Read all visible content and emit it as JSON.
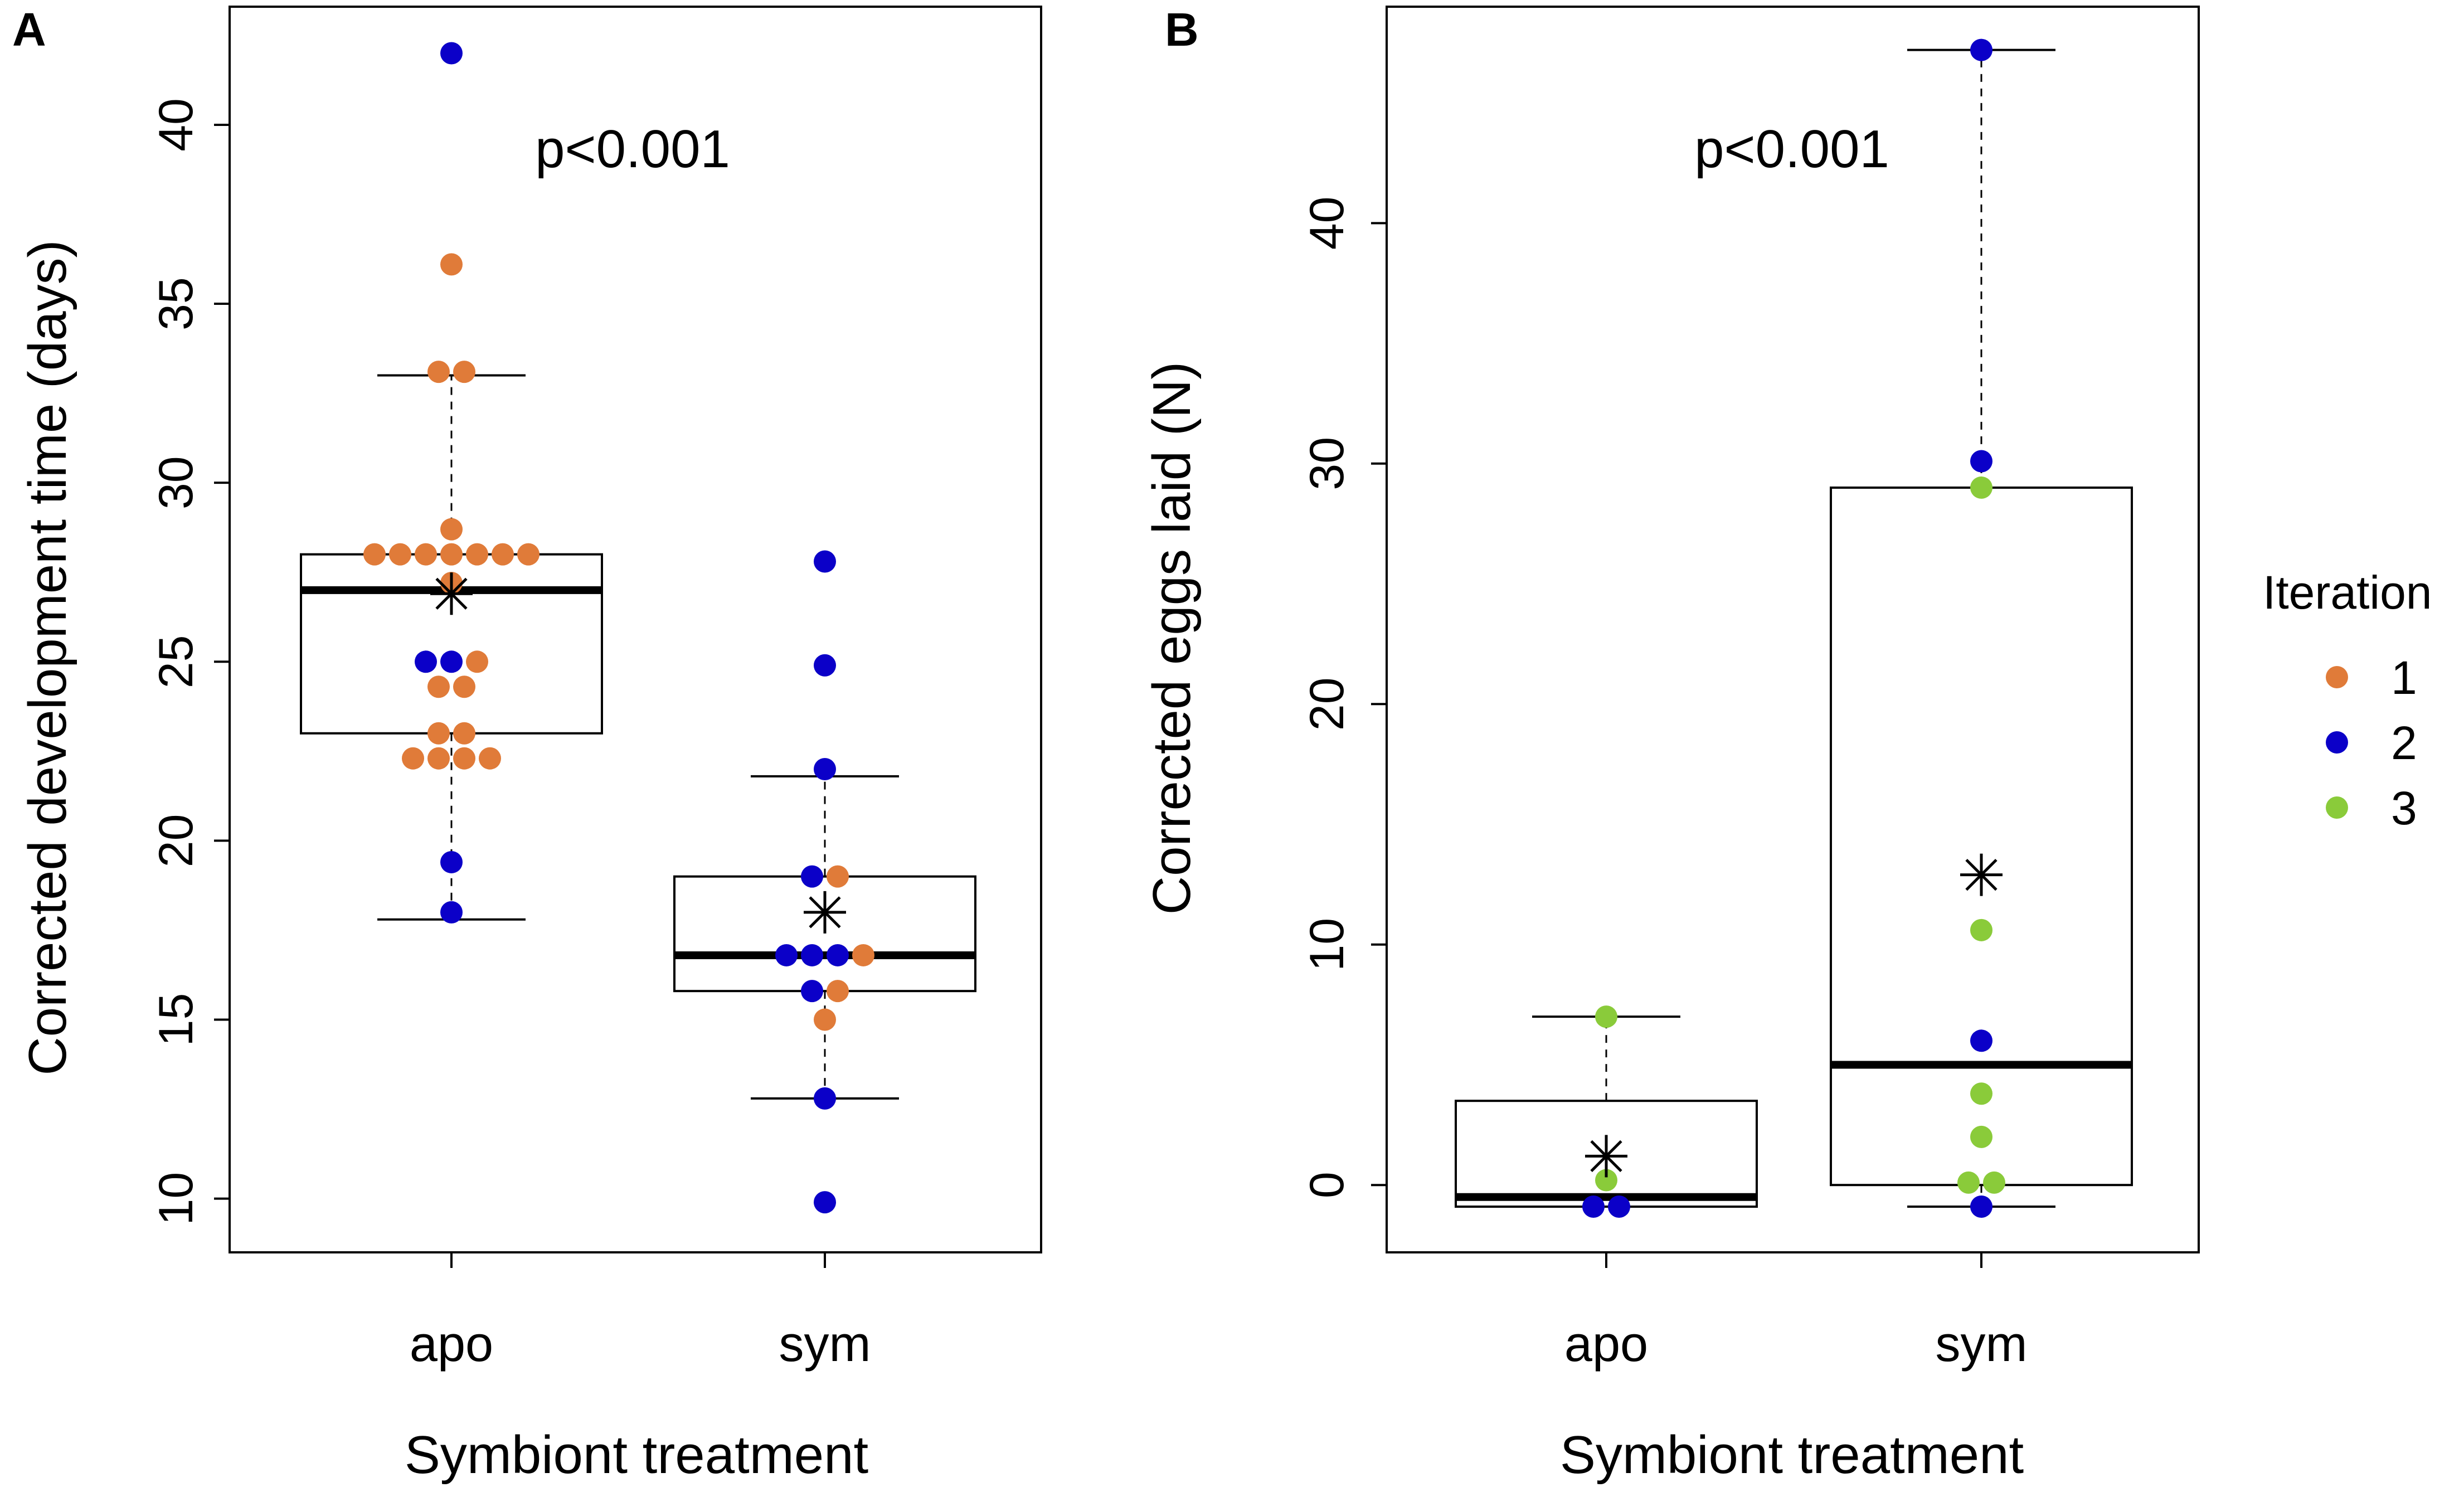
{
  "chart_data": [
    {
      "type": "boxplot",
      "panel": "A",
      "annotation": "p<0.001",
      "xlabel": "Symbiont treatment",
      "ylabel": "Corrected development time (days)",
      "ylim": [
        8.5,
        43.3
      ],
      "yticks": [
        10,
        15,
        20,
        25,
        30,
        35,
        40
      ],
      "categories": [
        "apo",
        "sym"
      ],
      "boxes": [
        {
          "category": "apo",
          "whisker_low": 17.8,
          "q1": 23.0,
          "median": 27.0,
          "q3": 28.0,
          "whisker_high": 33.0,
          "mean": 26.9
        },
        {
          "category": "sym",
          "whisker_low": 12.8,
          "q1": 15.8,
          "median": 16.8,
          "q3": 19.0,
          "whisker_high": 21.8,
          "mean": 18.0
        }
      ],
      "points": [
        {
          "category": "apo",
          "y": 42.0,
          "iteration": "2",
          "offset": 0
        },
        {
          "category": "apo",
          "y": 36.1,
          "iteration": "1",
          "offset": 0
        },
        {
          "category": "apo",
          "y": 33.1,
          "iteration": "1",
          "offset": -0.5
        },
        {
          "category": "apo",
          "y": 33.1,
          "iteration": "1",
          "offset": 0.5
        },
        {
          "category": "apo",
          "y": 28.7,
          "iteration": "1",
          "offset": 0
        },
        {
          "category": "apo",
          "y": 28.0,
          "iteration": "1",
          "offset": -3
        },
        {
          "category": "apo",
          "y": 28.0,
          "iteration": "1",
          "offset": -2
        },
        {
          "category": "apo",
          "y": 28.0,
          "iteration": "1",
          "offset": -1
        },
        {
          "category": "apo",
          "y": 28.0,
          "iteration": "1",
          "offset": 0
        },
        {
          "category": "apo",
          "y": 28.0,
          "iteration": "1",
          "offset": 1
        },
        {
          "category": "apo",
          "y": 28.0,
          "iteration": "1",
          "offset": 2
        },
        {
          "category": "apo",
          "y": 28.0,
          "iteration": "1",
          "offset": 3
        },
        {
          "category": "apo",
          "y": 27.2,
          "iteration": "1",
          "offset": 0
        },
        {
          "category": "apo",
          "y": 25.0,
          "iteration": "2",
          "offset": -1
        },
        {
          "category": "apo",
          "y": 25.0,
          "iteration": "2",
          "offset": 0
        },
        {
          "category": "apo",
          "y": 25.0,
          "iteration": "1",
          "offset": 1
        },
        {
          "category": "apo",
          "y": 24.3,
          "iteration": "1",
          "offset": -0.5
        },
        {
          "category": "apo",
          "y": 24.3,
          "iteration": "1",
          "offset": 0.5
        },
        {
          "category": "apo",
          "y": 23.0,
          "iteration": "1",
          "offset": -0.5
        },
        {
          "category": "apo",
          "y": 23.0,
          "iteration": "1",
          "offset": 0.5
        },
        {
          "category": "apo",
          "y": 22.3,
          "iteration": "1",
          "offset": -1.5
        },
        {
          "category": "apo",
          "y": 22.3,
          "iteration": "1",
          "offset": -0.5
        },
        {
          "category": "apo",
          "y": 22.3,
          "iteration": "1",
          "offset": 0.5
        },
        {
          "category": "apo",
          "y": 22.3,
          "iteration": "1",
          "offset": 1.5
        },
        {
          "category": "apo",
          "y": 19.4,
          "iteration": "2",
          "offset": 0
        },
        {
          "category": "apo",
          "y": 18.0,
          "iteration": "2",
          "offset": 0
        },
        {
          "category": "sym",
          "y": 27.8,
          "iteration": "2",
          "offset": 0
        },
        {
          "category": "sym",
          "y": 24.9,
          "iteration": "2",
          "offset": 0
        },
        {
          "category": "sym",
          "y": 22.0,
          "iteration": "2",
          "offset": 0
        },
        {
          "category": "sym",
          "y": 19.0,
          "iteration": "2",
          "offset": -0.5
        },
        {
          "category": "sym",
          "y": 19.0,
          "iteration": "1",
          "offset": 0.5
        },
        {
          "category": "sym",
          "y": 16.8,
          "iteration": "2",
          "offset": -1.5
        },
        {
          "category": "sym",
          "y": 16.8,
          "iteration": "2",
          "offset": -0.5
        },
        {
          "category": "sym",
          "y": 16.8,
          "iteration": "2",
          "offset": 0.5
        },
        {
          "category": "sym",
          "y": 16.8,
          "iteration": "1",
          "offset": 1.5
        },
        {
          "category": "sym",
          "y": 15.8,
          "iteration": "2",
          "offset": -0.5
        },
        {
          "category": "sym",
          "y": 15.8,
          "iteration": "1",
          "offset": 0.5
        },
        {
          "category": "sym",
          "y": 15.0,
          "iteration": "1",
          "offset": 0
        },
        {
          "category": "sym",
          "y": 12.8,
          "iteration": "2",
          "offset": 0
        },
        {
          "category": "sym",
          "y": 9.9,
          "iteration": "2",
          "offset": 0
        }
      ]
    },
    {
      "type": "boxplot",
      "panel": "B",
      "annotation": "p<0.001",
      "xlabel": "Symbiont treatment",
      "ylabel": "Corrected eggs laid (N)",
      "ylim": [
        -2.8,
        49.0
      ],
      "yticks": [
        0,
        10,
        20,
        30,
        40
      ],
      "categories": [
        "apo",
        "sym"
      ],
      "boxes": [
        {
          "category": "apo",
          "whisker_low": -0.9,
          "q1": -0.9,
          "median": -0.5,
          "q3": 3.5,
          "whisker_high": 7.0,
          "mean": 1.2
        },
        {
          "category": "sym",
          "whisker_low": -0.9,
          "q1": 0.0,
          "median": 5.0,
          "q3": 29.0,
          "whisker_high": 47.2,
          "mean": 12.9
        }
      ],
      "points": [
        {
          "category": "apo",
          "y": 7.0,
          "iteration": "3",
          "offset": 0
        },
        {
          "category": "apo",
          "y": 0.2,
          "iteration": "3",
          "offset": 0
        },
        {
          "category": "apo",
          "y": -0.9,
          "iteration": "2",
          "offset": -0.5
        },
        {
          "category": "apo",
          "y": -0.9,
          "iteration": "2",
          "offset": 0.5
        },
        {
          "category": "sym",
          "y": 47.2,
          "iteration": "2",
          "offset": 0
        },
        {
          "category": "sym",
          "y": 30.1,
          "iteration": "2",
          "offset": 0
        },
        {
          "category": "sym",
          "y": 29.0,
          "iteration": "3",
          "offset": 0
        },
        {
          "category": "sym",
          "y": 10.6,
          "iteration": "3",
          "offset": 0
        },
        {
          "category": "sym",
          "y": 6.0,
          "iteration": "2",
          "offset": 0
        },
        {
          "category": "sym",
          "y": 3.8,
          "iteration": "3",
          "offset": 0
        },
        {
          "category": "sym",
          "y": 2.0,
          "iteration": "3",
          "offset": 0
        },
        {
          "category": "sym",
          "y": 0.1,
          "iteration": "3",
          "offset": -0.5
        },
        {
          "category": "sym",
          "y": 0.1,
          "iteration": "3",
          "offset": 0.5
        },
        {
          "category": "sym",
          "y": -0.9,
          "iteration": "2",
          "offset": 0
        }
      ]
    }
  ],
  "legend": {
    "title": "Iteration",
    "items": [
      {
        "label": "1",
        "color": "#E07B39"
      },
      {
        "label": "2",
        "color": "#0B00C8"
      },
      {
        "label": "3",
        "color": "#8ACB3A"
      }
    ]
  }
}
